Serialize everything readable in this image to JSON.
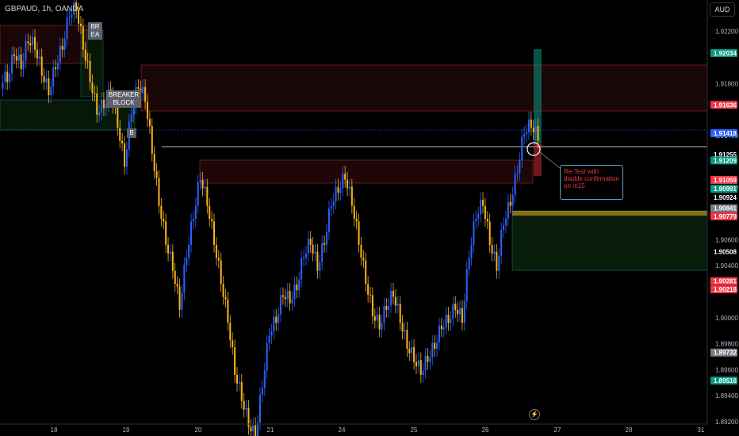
{
  "header": {
    "symbol": "GBPAUD, 1h, OANDA",
    "currency": "AUD"
  },
  "annotations": {
    "retest_note": "Re-Test with double confirmation on m15",
    "breaker_block": "BREAKER\nBLOCK",
    "breaker_top_fragment": "BR\nEA",
    "breaker_small_fragment": "B"
  },
  "colors": {
    "bull": "#2962ff",
    "bear": "#f7b318",
    "green_tag": "#089981",
    "red_tag": "#f23645",
    "blue_tag": "#2962ff",
    "grey_tag": "#787b86",
    "zone_red": "#f23645",
    "zone_green": "#1b5e20"
  },
  "chart_data": {
    "type": "candlestick",
    "x_tick_labels": [
      "18",
      "19",
      "20",
      "21",
      "24",
      "25",
      "26",
      "27",
      "28",
      "31"
    ],
    "y_tick_labels": [
      "1.92200",
      "1.91800",
      "1.91400",
      "1.91000",
      "1.90600",
      "1.90400",
      "1.90000",
      "1.89800",
      "1.89600",
      "1.89400",
      "1.89200"
    ],
    "ylim": [
      1.89182,
      1.92442
    ],
    "y_ticks": [
      1.922,
      1.918,
      1.914,
      1.91,
      1.906,
      1.904,
      1.9,
      1.898,
      1.896,
      1.894,
      1.892
    ],
    "price_tags": [
      {
        "label": "1.92034",
        "value": 1.92034,
        "color": "#089981"
      },
      {
        "label": "1.91636",
        "value": 1.91636,
        "color": "#f23645"
      },
      {
        "label": "1.91418",
        "value": 1.91418,
        "color": "#2962ff"
      },
      {
        "label": "1.91255",
        "value": 1.91255,
        "color": "none"
      },
      {
        "label": "1.91209",
        "value": 1.91209,
        "color": "#089981"
      },
      {
        "label": "1.91059",
        "value": 1.91059,
        "color": "#f23645"
      },
      {
        "label": "1.90991",
        "value": 1.90991,
        "color": "#089981"
      },
      {
        "label": "1.90924",
        "value": 1.90924,
        "color": "none"
      },
      {
        "label": "1.90841",
        "value": 1.90841,
        "color": "#787b86"
      },
      {
        "label": "1.90779",
        "value": 1.90779,
        "color": "#f23645"
      },
      {
        "label": "1.90508",
        "value": 1.90508,
        "color": "none"
      },
      {
        "label": "1.90281",
        "value": 1.90281,
        "color": "#f23645"
      },
      {
        "label": "1.90218",
        "value": 1.90218,
        "color": "#f23645"
      },
      {
        "label": "1.89732",
        "value": 1.89732,
        "color": "#787b86"
      },
      {
        "label": "1.89516",
        "value": 1.89516,
        "color": "#089981"
      }
    ],
    "close_series": [
      1.9185,
      1.9205,
      1.9195,
      1.9215,
      1.921,
      1.919,
      1.9175,
      1.9195,
      1.921,
      1.9235,
      1.924,
      1.921,
      1.9185,
      1.916,
      1.9165,
      1.9175,
      1.915,
      1.912,
      1.916,
      1.918,
      1.917,
      1.913,
      1.909,
      1.906,
      1.904,
      1.901,
      1.905,
      1.908,
      1.911,
      1.909,
      1.906,
      1.903,
      1.9,
      1.896,
      1.894,
      1.892,
      1.891,
      1.895,
      1.899,
      1.9,
      1.902,
      1.9015,
      1.9025,
      1.905,
      1.906,
      1.904,
      1.906,
      1.909,
      1.91,
      1.911,
      1.909,
      1.906,
      1.903,
      1.9005,
      1.8995,
      1.901,
      1.902,
      1.9,
      1.898,
      1.897,
      1.896,
      1.897,
      1.898,
      1.8995,
      1.9,
      1.901,
      1.9,
      1.905,
      1.908,
      1.909,
      1.906,
      1.904,
      1.9075,
      1.909,
      1.9115,
      1.9145,
      1.915,
      1.914
    ]
  }
}
